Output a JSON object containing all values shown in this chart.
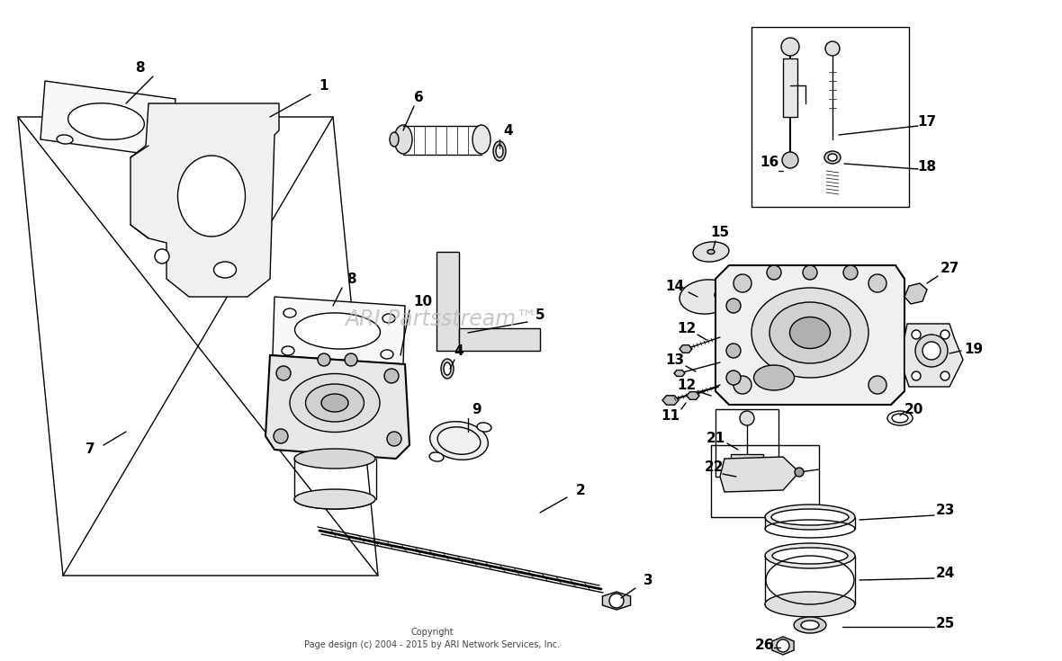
{
  "bg": "#ffffff",
  "lc": "#000000",
  "wm_text": "ARI Partsstream™",
  "wm_color": "#bbbbbb",
  "copyright": "Copyright\nPage design (c) 2004 - 2015 by ARI Network Services, Inc."
}
